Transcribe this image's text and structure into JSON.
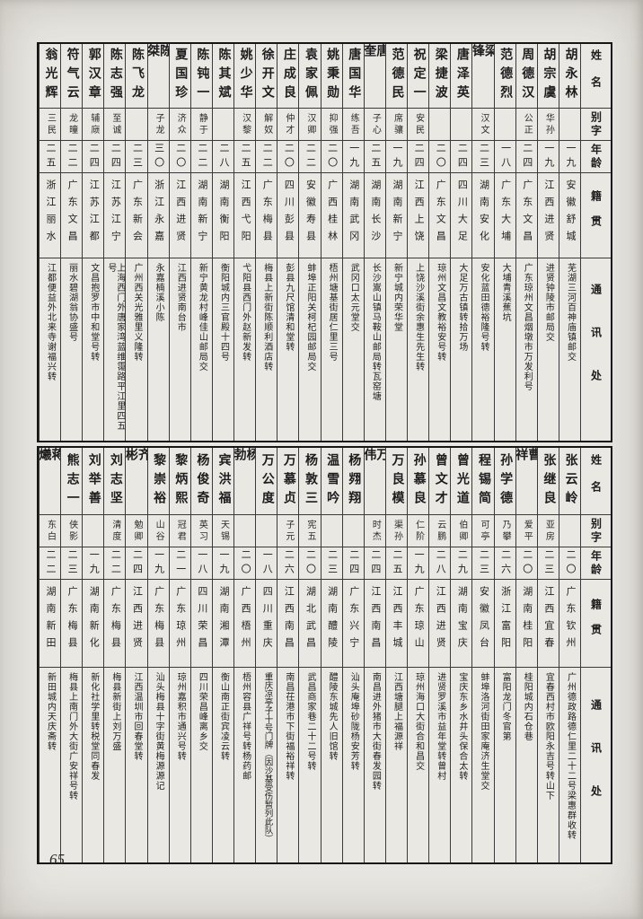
{
  "page": {
    "number": "65"
  },
  "table": {
    "headers": {
      "name": "姓名",
      "zi": "别字",
      "age": "年龄",
      "native": "籍贯",
      "address": "通讯处"
    },
    "sections": [
      {
        "people": [
          {
            "name": "胡永林",
            "zi": "",
            "age": "一九",
            "native": "安徽舒城",
            "address": "芜湖三河百神庙镇邮交"
          },
          {
            "name": "胡宗虞",
            "zi": "华孙",
            "age": "一九",
            "native": "江西进贤",
            "address": "进贤钟陵市邮局交"
          },
          {
            "name": "周德汉",
            "zi": "公正",
            "age": "二四",
            "native": "广东文昌",
            "address": "广东琼州文昌烟墩市万发利号"
          },
          {
            "name": "范德烈",
            "zi": "",
            "age": "一八",
            "native": "广东大埔",
            "address": "大埔青溪蕉坑"
          },
          {
            "name": "梁锋",
            "zi": "汉文",
            "age": "二三",
            "native": "湖南安化",
            "address": "安化蓝田德裕隆号转"
          },
          {
            "name": "唐泽英",
            "zi": "",
            "age": "二四",
            "native": "四川大足",
            "address": "大足万古镇转拾万场"
          },
          {
            "name": "梁捷波",
            "zi": "",
            "age": "二〇",
            "native": "广东文昌",
            "address": "琼州文昌文教裕安号转"
          },
          {
            "name": "祝定一",
            "zi": "安民",
            "age": "二四",
            "native": "江西上饶",
            "address": "上饶沙溪街余惠生先生转"
          },
          {
            "name": "范德民",
            "zi": "席骧",
            "age": "一九",
            "native": "湖南新宁",
            "address": "新宁城内荣华堂"
          },
          {
            "name": "唐奎",
            "zi": "子心",
            "age": "二五",
            "native": "湖南长沙",
            "address": "长沙嵩山镇马鞍山邮局转瓦窑塘"
          },
          {
            "name": "唐国华",
            "zi": "练吾",
            "age": "一九",
            "native": "湖南武冈",
            "address": "武冈口太元堂交"
          },
          {
            "name": "姚秉勋",
            "zi": "抑强",
            "age": "二〇",
            "native": "广西桂林",
            "address": "梧州塘基街居仁里三号"
          },
          {
            "name": "袁家佩",
            "zi": "汉卿",
            "age": "二二",
            "native": "安徽寿县",
            "address": "蚌埠正阳关柯杞园邮局交"
          },
          {
            "name": "庄成良",
            "zi": "仲才",
            "age": "二〇",
            "native": "四川彭县",
            "address": "彭县九尺馆清和堂转"
          },
          {
            "name": "徐开文",
            "zi": "解奴",
            "age": "二二",
            "native": "广东梅县",
            "address": "梅县上新街陈顺利酒店转"
          },
          {
            "name": "姚少华",
            "zi": "汉黎",
            "age": "二五",
            "native": "江西弋阳",
            "address": "弋阳县西门外赵新发转"
          },
          {
            "name": "陈其斌",
            "zi": "",
            "age": "二八",
            "native": "湖南衡阳",
            "address": "衡阳城内三官殿十四号"
          },
          {
            "name": "陈钝一",
            "zi": "静于",
            "age": "二二",
            "native": "湖南新宁",
            "address": "新宁黄龙村峰佳山邮局交"
          },
          {
            "name": "夏国珍",
            "zi": "济众",
            "age": "二〇",
            "native": "江西进贤",
            "address": "江西进贤南台市"
          },
          {
            "name": "陈桀",
            "zi": "子龙",
            "age": "三〇",
            "native": "浙江永嘉",
            "address": "永嘉楠溪小陈"
          },
          {
            "name": "陈飞龙",
            "zi": "",
            "age": "二三",
            "native": "广东新会",
            "address": "广州西关光雅里义隆转"
          },
          {
            "name": "陈志强",
            "zi": "至诚",
            "age": "二四",
            "native": "江苏江宁",
            "address": "上海西门外唐家湾蓝维霭路平江里四五号"
          },
          {
            "name": "郭汉章",
            "zi": "辅庼",
            "age": "二四",
            "native": "江苏江都",
            "address": "文昌抱罗市中和堂号转"
          },
          {
            "name": "符气云",
            "zi": "龙曈",
            "age": "二二",
            "native": "广东文昌",
            "address": "丽水碧湖翁协盛号"
          },
          {
            "name": "翁光辉",
            "zi": "三民",
            "age": "二五",
            "native": "浙江丽水",
            "address": "江都便益外北来寺谢福兴转"
          }
        ]
      },
      {
        "people": [
          {
            "name": "张云岭",
            "zi": "",
            "age": "二〇",
            "native": "广东钦州",
            "address": "广州德政路德仁里二十二号梁惠群收转"
          },
          {
            "name": "张继良",
            "zi": "亚房",
            "age": "二三",
            "native": "江西宜春",
            "address": "宜春西村市欧阳永吉号转山下"
          },
          {
            "name": "曹祥",
            "zi": "爱平",
            "age": "二〇",
            "native": "湖南桂阳",
            "address": "桂阳城内石仓巷"
          },
          {
            "name": "孙学德",
            "zi": "乃攀",
            "age": "二六",
            "native": "浙江富阳",
            "address": "富阳龙门冬官第"
          },
          {
            "name": "程锡简",
            "zi": "可亭",
            "age": "二三",
            "native": "安徽凤台",
            "address": "蚌埠洛河街田家庵济生堂交"
          },
          {
            "name": "曾光道",
            "zi": "伯卿",
            "age": "二九",
            "native": "湖南宝庆",
            "address": "宝庆东乡水井头保合太转"
          },
          {
            "name": "曾文才",
            "zi": "云鹏",
            "age": "二八",
            "native": "江西进贤",
            "address": "进贤罗溪市益年堂转曾村"
          },
          {
            "name": "孙慕良",
            "zi": "仁阶",
            "age": "一九",
            "native": "广东琼山",
            "address": "琼州海口大街合和昌交"
          },
          {
            "name": "万良模",
            "zi": "渠孙",
            "age": "二五",
            "native": "江西丰城",
            "address": "江西塘腿上福源祥"
          },
          {
            "name": "万伟",
            "zi": "时杰",
            "age": "二四",
            "native": "江西南昌",
            "address": "南昌进外猪市大街春发园转"
          },
          {
            "name": "杨翙翔",
            "zi": "",
            "age": "二四",
            "native": "广东兴宁",
            "address": "汕头庵埠砂陇杨安芳转"
          },
          {
            "name": "温雪吟",
            "zi": "",
            "age": "二三",
            "native": "湖南醴陵",
            "address": "醴陵东城先人旧馆转"
          },
          {
            "name": "杨敦三",
            "zi": "宪五",
            "age": "二〇",
            "native": "湖北武昌",
            "address": "武昌商家巷二十二号转"
          },
          {
            "name": "万慕贞",
            "zi": "子元",
            "age": "二六",
            "native": "江西南昌",
            "address": "南昌茌港市下街福裕祥转"
          },
          {
            "name": "万公度",
            "zi": "",
            "age": "一八",
            "native": "四川重庆",
            "address": "重庆凉亭子十号门牌︵因沙基受伤暂列此队︶"
          },
          {
            "name": "杨勃",
            "zi": "",
            "age": "二〇",
            "native": "广西梧州",
            "address": "梧州容县广祥号转杨药邮"
          },
          {
            "name": "宾洪福",
            "zi": "天锡",
            "age": "一九",
            "native": "湖南湘潭",
            "address": "衡山南正街宾凌云转"
          },
          {
            "name": "杨俊奇",
            "zi": "英习",
            "age": "一八",
            "native": "四川荣昌",
            "address": "四川荣昌峰离乡交"
          },
          {
            "name": "黎炳熙",
            "zi": "冠君",
            "age": "二一",
            "native": "广东琼州",
            "address": "琼州嘉积市通兴号转"
          },
          {
            "name": "黎崇裕",
            "zi": "山谷",
            "age": "一九",
            "native": "广东梅县",
            "address": "汕头梅县十字街黄梅源源记"
          },
          {
            "name": "齐彬",
            "zi": "勉卿",
            "age": "二四",
            "native": "江西进贤",
            "address": "江西温圳市回春堂转"
          },
          {
            "name": "刘志坚",
            "zi": "清度",
            "age": "二二",
            "native": "广东梅县",
            "address": "梅县新街上刘万盛"
          },
          {
            "name": "刘举善",
            "zi": "",
            "age": "一九",
            "native": "湖南新化",
            "address": "新化社学里转税堂同春发"
          },
          {
            "name": "熊志一",
            "zi": "侠影",
            "age": "二三",
            "native": "广东梅县",
            "address": "梅县上南门外大街广安祥号转"
          },
          {
            "name": "蒋爔",
            "zi": "东白",
            "age": "二二",
            "native": "湖南新田",
            "address": "新田城内天庆斋转"
          }
        ]
      }
    ]
  }
}
